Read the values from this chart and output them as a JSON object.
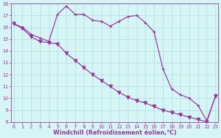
{
  "xlabel": "Windchill (Refroidissement éolien,°C)",
  "hours": [
    0,
    1,
    2,
    3,
    4,
    5,
    6,
    7,
    8,
    9,
    10,
    11,
    12,
    13,
    14,
    15,
    16,
    17,
    18,
    19,
    20,
    21,
    22,
    23
  ],
  "line1_plus": [
    16.3,
    16.0,
    15.4,
    15.1,
    14.8,
    17.1,
    17.8,
    17.1,
    17.1,
    16.6,
    16.5,
    16.1,
    16.5,
    16.9,
    17.0,
    16.4,
    15.6,
    12.5,
    10.8,
    10.3,
    10.0,
    9.4,
    8.1,
    10.2
  ],
  "line2_down": [
    16.3,
    15.9,
    15.2,
    14.8,
    14.7,
    14.6,
    13.8,
    13.2,
    12.6,
    12.0,
    11.5,
    11.0,
    10.5,
    10.1,
    9.8,
    9.6,
    9.3,
    9.0,
    8.8,
    8.6,
    8.4,
    8.2,
    8.0,
    10.2
  ],
  "line_color": "#993399",
  "bg_color": "#d6f5f5",
  "grid_color": "#aadddd",
  "ylim": [
    8,
    18
  ],
  "yticks": [
    8,
    9,
    10,
    11,
    12,
    13,
    14,
    15,
    16,
    17,
    18
  ],
  "xticks": [
    0,
    1,
    2,
    3,
    4,
    5,
    6,
    7,
    8,
    9,
    10,
    11,
    12,
    13,
    14,
    15,
    16,
    17,
    18,
    19,
    20,
    21,
    22,
    23
  ],
  "linewidth": 0.9,
  "tick_fontsize": 5.0,
  "xlabel_fontsize": 6.0,
  "markersize_plus": 3.5,
  "markersize_down": 3.5
}
